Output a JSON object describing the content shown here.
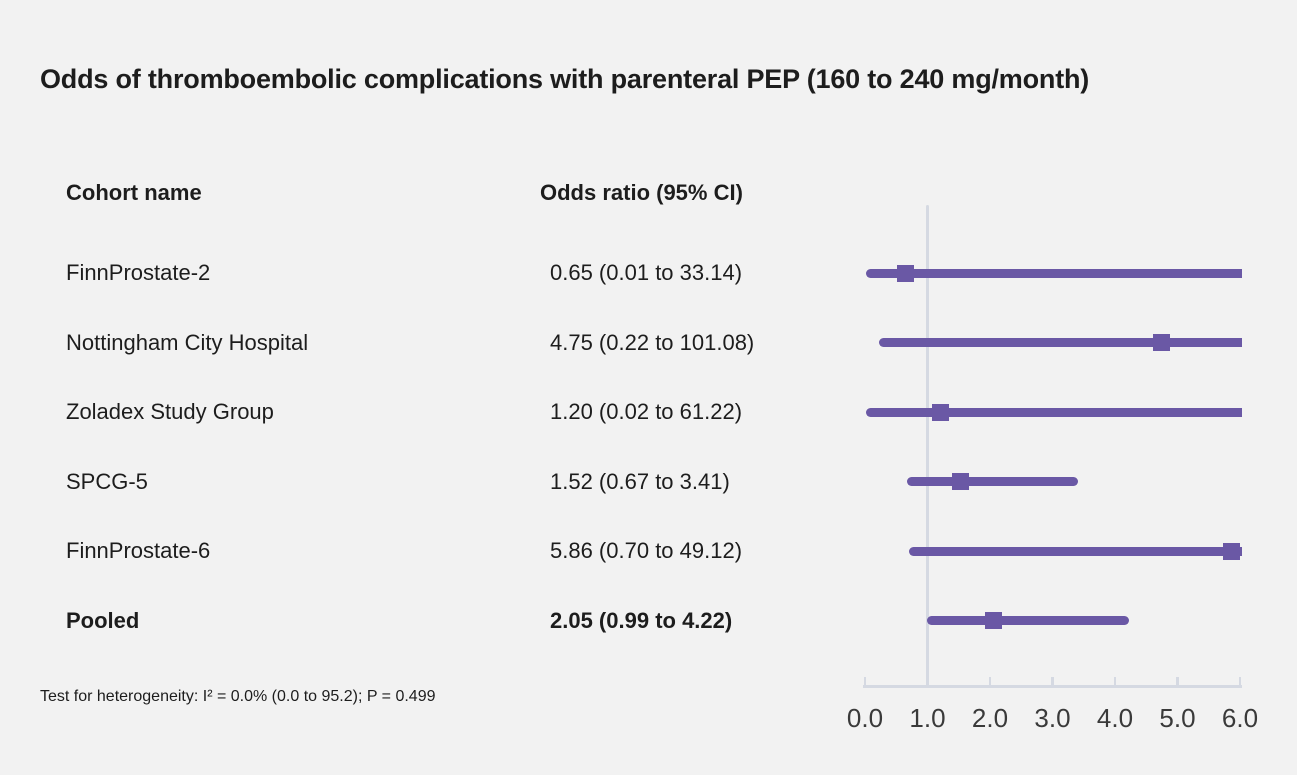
{
  "title": "Odds of thromboembolic complications with parenteral PEP (160 to 240 mg/month)",
  "columns": {
    "cohort": "Cohort name",
    "odds_ratio": "Odds ratio (95% CI)"
  },
  "footnote": "Test for heterogeneity: I² = 0.0% (0.0 to 95.2); P = 0.499",
  "colors": {
    "marker": "#6a58a5",
    "axis": "#d5d9e2",
    "background": "#f2f2f2",
    "text": "#1d1d1d"
  },
  "chart_data": {
    "type": "scatter",
    "subtype": "forest-plot",
    "title": "Odds of thromboembolic complications with parenteral PEP (160 to 240 mg/month)",
    "xlabel": "Odds ratio",
    "xlim": [
      0.0,
      6.0
    ],
    "x_ticks": [
      "0.0",
      "1.0",
      "2.0",
      "3.0",
      "4.0",
      "5.0",
      "6.0"
    ],
    "reference_line_x": 1.0,
    "grid": false,
    "rows": [
      {
        "label": "FinnProstate-2",
        "or": 0.65,
        "ci_low": 0.01,
        "ci_high": 33.14,
        "text": "0.65 (0.01 to 33.14)",
        "bold": false
      },
      {
        "label": "Nottingham City Hospital",
        "or": 4.75,
        "ci_low": 0.22,
        "ci_high": 101.08,
        "text": "4.75 (0.22 to 101.08)",
        "bold": false
      },
      {
        "label": "Zoladex Study Group",
        "or": 1.2,
        "ci_low": 0.02,
        "ci_high": 61.22,
        "text": "1.20 (0.02 to 61.22)",
        "bold": false
      },
      {
        "label": "SPCG-5",
        "or": 1.52,
        "ci_low": 0.67,
        "ci_high": 3.41,
        "text": "1.52 (0.67 to 3.41)",
        "bold": false
      },
      {
        "label": "FinnProstate-6",
        "or": 5.86,
        "ci_low": 0.7,
        "ci_high": 49.12,
        "text": "5.86 (0.70 to 49.12)",
        "bold": false
      },
      {
        "label": "Pooled",
        "or": 2.05,
        "ci_low": 0.99,
        "ci_high": 4.22,
        "text": "2.05 (0.99 to 4.22)",
        "bold": true
      }
    ]
  }
}
